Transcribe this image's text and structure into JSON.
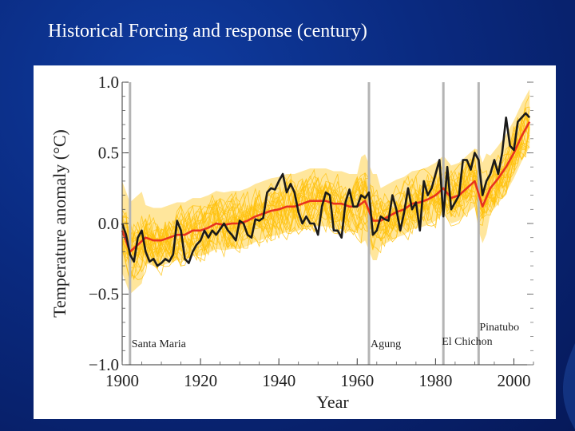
{
  "slide": {
    "title": "Historical Forcing and response (century)"
  },
  "chart_data": {
    "type": "line",
    "xlabel": "Year",
    "ylabel": "Temperature anomaly (°C)",
    "xlim": [
      1900,
      2005
    ],
    "ylim": [
      -1.0,
      1.0
    ],
    "x_ticks": [
      1900,
      1920,
      1940,
      1960,
      1980,
      2000
    ],
    "y_ticks": [
      {
        "value": 1.0,
        "label": "1.0"
      },
      {
        "value": 0.5,
        "label": "0.5"
      },
      {
        "value": 0.0,
        "label": "0.0"
      },
      {
        "value": -0.5,
        "label": "−0.5"
      },
      {
        "value": -1.0,
        "label": "−1.0"
      }
    ],
    "colors": {
      "observed": "#1a1a1a",
      "ensemble_mean": "#e8321e",
      "ensemble_members": "#ffc20e",
      "envelope": "#ffd24a",
      "eruption_lines": "#b4b4b4"
    },
    "eruptions": [
      {
        "year": 1902,
        "label": "Santa Maria"
      },
      {
        "year": 1963,
        "label": "Agung"
      },
      {
        "year": 1982,
        "label": "El Chichon"
      },
      {
        "year": 1991,
        "label": "Pinatubo"
      }
    ],
    "series": [
      {
        "role": "observed",
        "x": [
          1900,
          1901,
          1902,
          1903,
          1904,
          1905,
          1906,
          1907,
          1908,
          1909,
          1910,
          1911,
          1912,
          1913,
          1914,
          1915,
          1916,
          1917,
          1918,
          1919,
          1920,
          1921,
          1922,
          1923,
          1924,
          1925,
          1926,
          1927,
          1928,
          1929,
          1930,
          1931,
          1932,
          1933,
          1934,
          1935,
          1936,
          1937,
          1938,
          1939,
          1940,
          1941,
          1942,
          1943,
          1944,
          1945,
          1946,
          1947,
          1948,
          1949,
          1950,
          1951,
          1952,
          1953,
          1954,
          1955,
          1956,
          1957,
          1958,
          1959,
          1960,
          1961,
          1962,
          1963,
          1964,
          1965,
          1966,
          1967,
          1968,
          1969,
          1970,
          1971,
          1972,
          1973,
          1974,
          1975,
          1976,
          1977,
          1978,
          1979,
          1980,
          1981,
          1982,
          1983,
          1984,
          1985,
          1986,
          1987,
          1988,
          1989,
          1990,
          1991,
          1992,
          1993,
          1994,
          1995,
          1996,
          1997,
          1998,
          1999,
          2000,
          2001,
          2002,
          2003,
          2004
        ],
        "y": [
          0.0,
          -0.08,
          -0.22,
          -0.27,
          -0.1,
          -0.05,
          -0.2,
          -0.27,
          -0.25,
          -0.3,
          -0.28,
          -0.25,
          -0.27,
          -0.22,
          0.02,
          -0.05,
          -0.25,
          -0.28,
          -0.2,
          -0.15,
          -0.12,
          -0.05,
          -0.1,
          -0.05,
          -0.08,
          -0.04,
          0.0,
          -0.05,
          -0.08,
          -0.12,
          0.02,
          0.0,
          -0.08,
          -0.1,
          0.03,
          0.02,
          0.04,
          0.22,
          0.25,
          0.24,
          0.3,
          0.35,
          0.22,
          0.28,
          0.22,
          0.08,
          0.0,
          0.05,
          0.0,
          0.0,
          -0.08,
          0.12,
          0.22,
          0.2,
          -0.05,
          -0.05,
          -0.1,
          0.15,
          0.24,
          0.12,
          0.12,
          0.2,
          0.18,
          0.22,
          -0.08,
          -0.05,
          0.05,
          0.03,
          0.02,
          0.2,
          0.1,
          -0.05,
          0.08,
          0.25,
          0.1,
          0.15,
          -0.05,
          0.3,
          0.2,
          0.25,
          0.35,
          0.45,
          0.05,
          0.4,
          0.1,
          0.15,
          0.2,
          0.45,
          0.45,
          0.38,
          0.5,
          0.45,
          0.2,
          0.3,
          0.35,
          0.45,
          0.35,
          0.5,
          0.75,
          0.55,
          0.52,
          0.72,
          0.75,
          0.78,
          0.75
        ]
      },
      {
        "role": "ensemble_mean",
        "x": [
          1900,
          1902,
          1904,
          1906,
          1908,
          1910,
          1912,
          1914,
          1916,
          1918,
          1920,
          1922,
          1924,
          1926,
          1928,
          1930,
          1932,
          1934,
          1936,
          1938,
          1940,
          1942,
          1944,
          1946,
          1948,
          1950,
          1952,
          1954,
          1956,
          1958,
          1960,
          1962,
          1964,
          1966,
          1968,
          1970,
          1972,
          1974,
          1976,
          1978,
          1980,
          1982,
          1984,
          1986,
          1988,
          1990,
          1992,
          1994,
          1996,
          1998,
          2000,
          2002,
          2004
        ],
        "y": [
          -0.05,
          -0.2,
          -0.15,
          -0.1,
          -0.12,
          -0.12,
          -0.1,
          -0.08,
          -0.08,
          -0.05,
          -0.05,
          -0.03,
          0.0,
          -0.01,
          0.0,
          0.0,
          0.02,
          0.05,
          0.07,
          0.09,
          0.1,
          0.12,
          0.12,
          0.14,
          0.16,
          0.16,
          0.16,
          0.14,
          0.14,
          0.12,
          0.12,
          0.16,
          0.02,
          0.02,
          0.05,
          0.08,
          0.1,
          0.14,
          0.15,
          0.17,
          0.2,
          0.25,
          0.18,
          0.2,
          0.25,
          0.3,
          0.12,
          0.25,
          0.32,
          0.4,
          0.5,
          0.62,
          0.72
        ]
      }
    ]
  }
}
